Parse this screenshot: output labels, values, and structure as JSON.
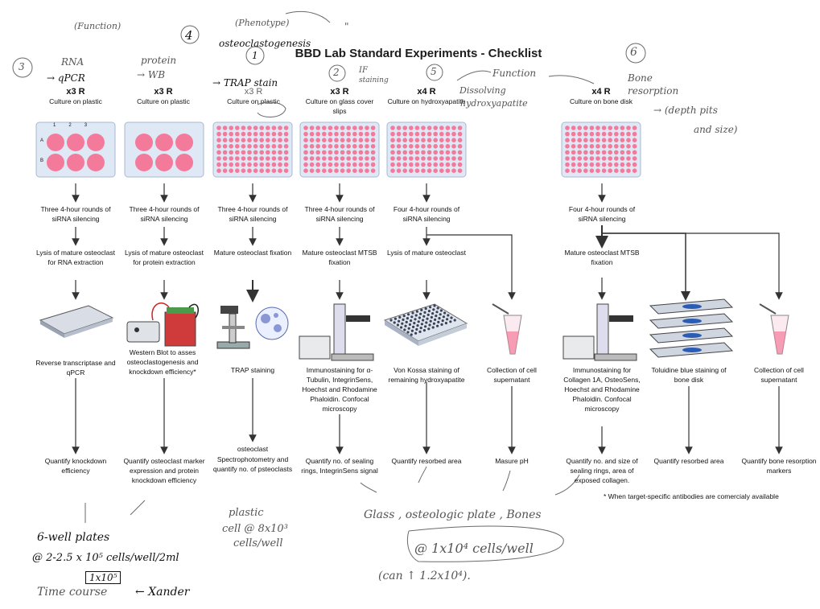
{
  "title": "BBD Lab Standard Experiments - Checklist",
  "columns": [
    {
      "id": "c1",
      "replicates": "x3 R",
      "culture": "Culture on plastic",
      "silencing": "Three 4-hour rounds of siRNA silencing",
      "processing": "Lysis of mature osteoclast for RNA extraction",
      "assay": "Reverse transcriptase and qPCR",
      "readout": "Quantify knockdown efficiency"
    },
    {
      "id": "c2",
      "replicates": "x3 R",
      "culture": "Culture on plastic",
      "silencing": "Three 4-hour rounds of siRNA silencing",
      "processing": "Lysis of mature osteoclast for protein extraction",
      "assay": "Western Blot to asses osteoclastogenesis and knockdown efficiency*",
      "readout": "Quantify osteoclast marker expression and protein knockdown efficiency"
    },
    {
      "id": "c3",
      "replicates": "x3 R",
      "culture": "Culture on plastic",
      "silencing": "Three 4-hour rounds of siRNA silencing",
      "processing": "Mature osteoclast fixation",
      "assay": "TRAP staining",
      "readout_title": "osteoclast",
      "readout": "Spectrophotometry and quantify no. of psteoclasts"
    },
    {
      "id": "c4",
      "replicates": "x3 R",
      "culture": "Culture on glass cover slips",
      "silencing": "Three 4-hour rounds of siRNA silencing",
      "processing": "Mature osteoclast MTSB fixation",
      "assay": "Immunostaining for α-Tubulin, IntegrinSens, Hoechst and Rhodamine Phaloidin. Confocal microscopy",
      "readout": "Quantify no. of sealing rings, IntegrinSens signal"
    },
    {
      "id": "c5",
      "replicates": "x4 R",
      "culture": "Culture on hydroxyapatite",
      "silencing": "Four 4-hour rounds of siRNA silencing",
      "processing": "Lysis of mature osteoclast",
      "assay": "Von Kossa staining of remaining hydroxyapatite",
      "readout": "Quantify resorbed area"
    },
    {
      "id": "c6",
      "assay": "Collection of cell supernatant",
      "readout": "Masure pH"
    },
    {
      "id": "c7",
      "replicates": "x4 R",
      "culture": "Culture on bone disk",
      "silencing": "Four 4-hour rounds of siRNA silencing",
      "processing": "Mature osteoclast MTSB fixation",
      "assay": "Immunostaining for Collagen 1A, OsteoSens, Hoechst and Rhodamine Phaloidin. Confocal microscopy",
      "readout": "Quantify no. and size of sealing rings, area of exposed collagen."
    },
    {
      "id": "c8",
      "assay": "Toluidine blue staining of bone disk",
      "readout": "Quantify resorbed area"
    },
    {
      "id": "c9",
      "assay": "Collection of cell supernatant",
      "readout": "Quantify bone resorption markers"
    }
  ],
  "footnote": "* When target-specific antibodies are comercialy available",
  "plate_labels": {
    "cols": [
      "1",
      "2",
      "3"
    ],
    "rows": [
      "A",
      "B"
    ]
  },
  "handwritten": {
    "n3": "3",
    "rna": "RNA",
    "qpcr": "→ qPCR",
    "function": "(Function)",
    "n4": "4",
    "protein": "protein",
    "wb": "→ WB",
    "phenotype": "(Phenotype)",
    "quote": "\"",
    "osteoclastogenesis": "osteoclastogenesis",
    "n1": "1",
    "trap": "→ TRAP stain",
    "n2": "2",
    "if": "IF",
    "staining": "staining",
    "n5": "5",
    "function2": "Function",
    "dissolving": "Dissolving",
    "hydroxyapatite": "hydroxyapatite",
    "n6": "6",
    "bone": "Bone",
    "resorption": "resorption",
    "depth": "→ (depth pits",
    "size": "and size)",
    "wellplates": "6-well plates",
    "seed1": "@ 2-2.5 x 10⁵ cells/well/2ml",
    "seed1box": "1x10⁵",
    "timecourse": "Time course",
    "xander": "← Xander",
    "plastic": "plastic",
    "cell1": "cell @ 8x10³",
    "cell2": "cells/well",
    "glass": "Glass , osteologic plate , Bones",
    "seed2": "@ 1x10⁴ cells/well",
    "can": "(can ↑ 1.2x10⁴)."
  },
  "colors": {
    "plate_well": "#f47a9b",
    "plate_frame": "#dfe8f5",
    "arrow": "#333333",
    "pencil": "#5a5a5a"
  }
}
